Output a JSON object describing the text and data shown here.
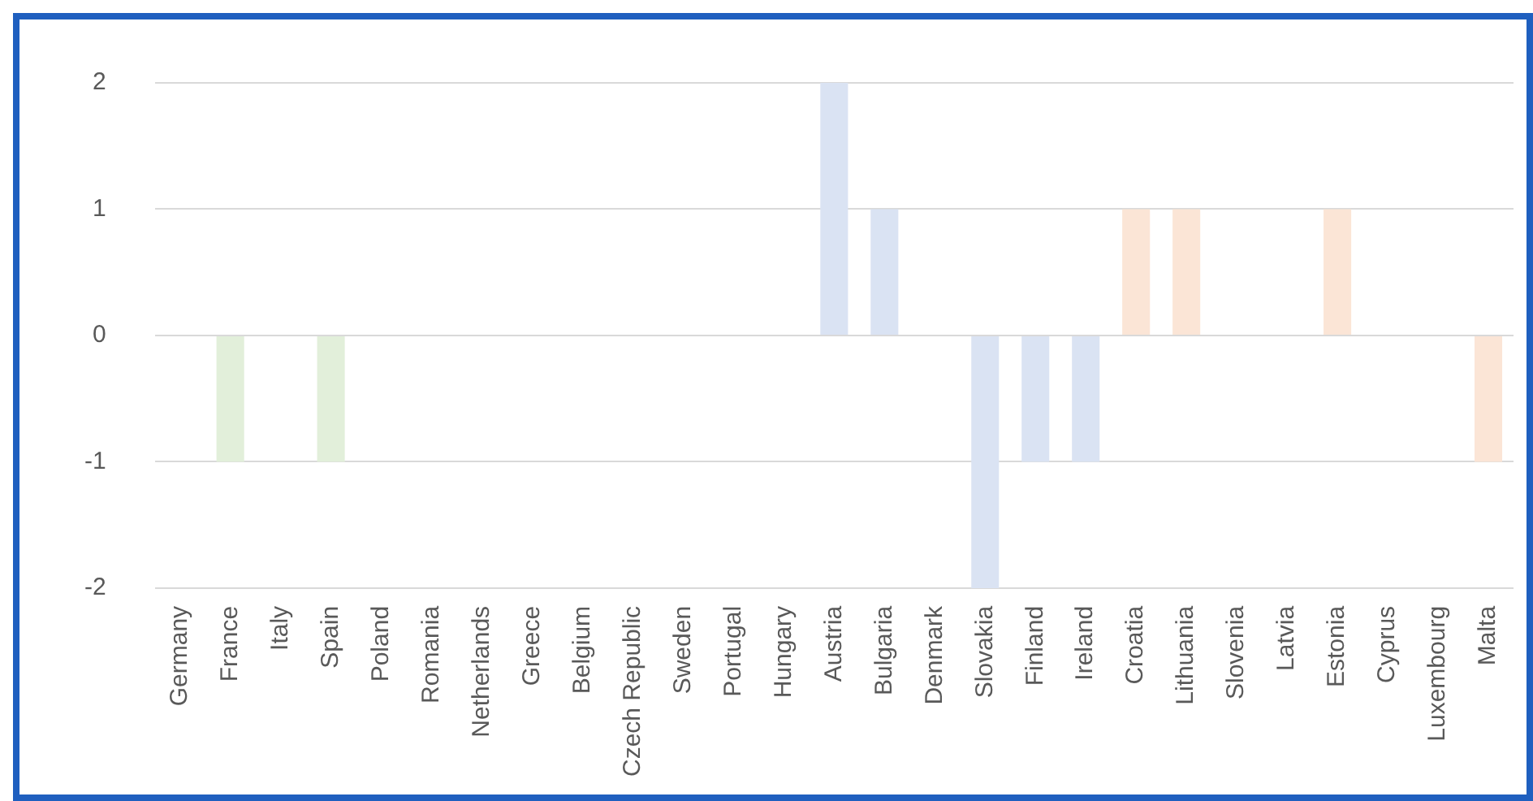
{
  "chart_data": {
    "type": "bar",
    "categories": [
      "Germany",
      "France",
      "Italy",
      "Spain",
      "Poland",
      "Romania",
      "Netherlands",
      "Greece",
      "Belgium",
      "Czech Republic",
      "Sweden",
      "Portugal",
      "Hungary",
      "Austria",
      "Bulgaria",
      "Denmark",
      "Slovakia",
      "Finland",
      "Ireland",
      "Croatia",
      "Lithuania",
      "Slovenia",
      "Latvia",
      "Estonia",
      "Cyprus",
      "Luxembourg",
      "Malta"
    ],
    "values": [
      0,
      -1,
      0,
      -1,
      0,
      0,
      0,
      0,
      0,
      0,
      0,
      0,
      0,
      2,
      1,
      0,
      -2,
      -1,
      -1,
      1,
      1,
      0,
      0,
      1,
      0,
      0,
      -1
    ],
    "colors": [
      "#e2efda",
      "#e2efda",
      "#e2efda",
      "#e2efda",
      "#e2efda",
      "#e2efda",
      "#e2efda",
      "#e2efda",
      "#e2efda",
      "#e2efda",
      "#e2efda",
      "#e2efda",
      "#dae3f3",
      "#dae3f3",
      "#dae3f3",
      "#dae3f3",
      "#dae3f3",
      "#dae3f3",
      "#dae3f3",
      "#fbe5d6",
      "#fbe5d6",
      "#fbe5d6",
      "#fbe5d6",
      "#fbe5d6",
      "#fbe5d6",
      "#fbe5d6",
      "#fbe5d6"
    ],
    "ylim": [
      -2,
      2
    ],
    "yticks": [
      -2,
      -1,
      0,
      1,
      2
    ],
    "grid": "y",
    "legend": false
  }
}
